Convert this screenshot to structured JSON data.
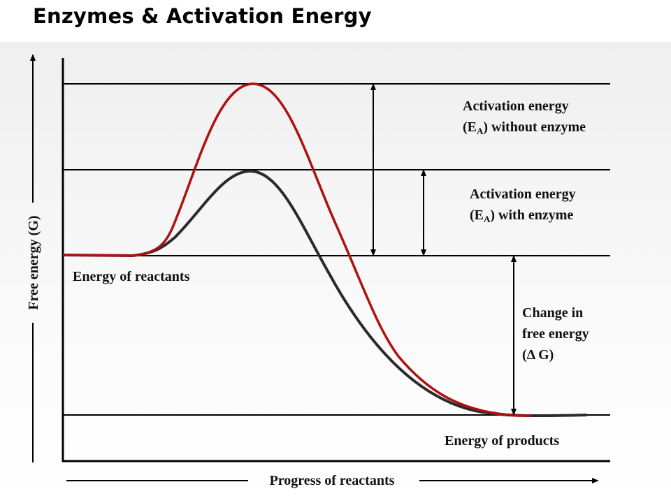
{
  "title": "Enzymes & Activation Energy",
  "axes": {
    "y_label": "Free energy (G)",
    "x_label": "Progress of reactants"
  },
  "labels": {
    "ea_without": {
      "line1": "Activation energy",
      "paren_open": "(E",
      "sub": "A",
      "rest": ") without enzyme"
    },
    "ea_with": {
      "line1": "Activation energy",
      "paren_open": "(E",
      "sub": "A",
      "rest": ") with enzyme"
    },
    "delta_g": {
      "line1": "Change in",
      "line2": "free energy",
      "line3": "(Δ G)"
    },
    "reactants": "Energy of reactants",
    "products": "Energy of products"
  },
  "colors": {
    "without_enzyme": "#b01010",
    "with_enzyme": "#2b2b2b"
  }
}
